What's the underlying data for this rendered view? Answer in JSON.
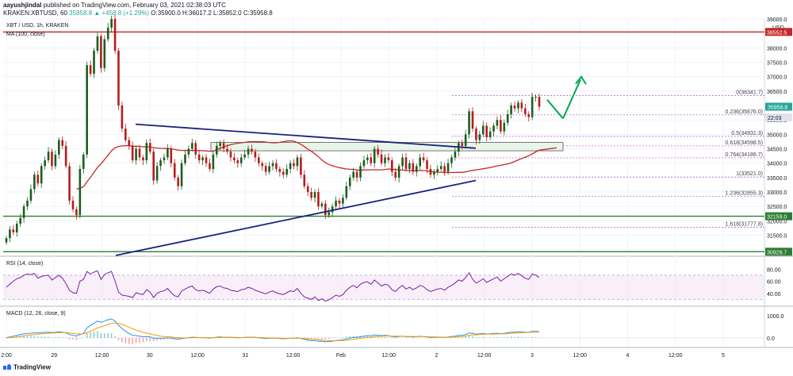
{
  "header": {
    "author": "aayushjindal",
    "published": "published on TradingView.com, February 03, 2021 02:38:03 UTC",
    "symbol": "KRAKEN:XBTUSD, 60",
    "price": "35958.8",
    "change": "▲ +458.8 (+1.29%)",
    "ohlc": "O:35900.0 H:36017.2 L:35852.0 C:35958.8"
  },
  "footer": {
    "brand": "TradingView"
  },
  "colors": {
    "up": "#26a69a",
    "down": "#ef5350",
    "candle_dark": "#b71c1c",
    "candle_green": "#1b5e20",
    "ma": "#c62828",
    "trend": "#1a237e",
    "rsi": "#7b1fa2",
    "macd": "#2196f3",
    "signal": "#ff9800",
    "fib": "#9c27b0",
    "resistance": "#c62828",
    "support": "#2e7d32",
    "arrow": "#00a651"
  },
  "chart_data": [
    {
      "type": "candlestick",
      "title": "XBT / USD, 1h, KRAKEN",
      "indicator": "MA (100, close)",
      "y_unit": "USD",
      "ylim": [
        30800,
        39000
      ],
      "y_ticks": [
        "39000.0",
        "38500.0",
        "38000.0",
        "37500.0",
        "37000.0",
        "36500.0",
        "36000.0",
        "35500.0",
        "35000.0",
        "34500.0",
        "34000.0",
        "33500.0",
        "33000.0",
        "32500.0",
        "32000.0",
        "31500.0",
        "31000.0"
      ],
      "x_ticks": [
        "2:00",
        "29",
        "12:00",
        "30",
        "12:00",
        "31",
        "12:00",
        "Feb",
        "12:00",
        "2",
        "12:00",
        "3",
        "12:00",
        "4",
        "12:00",
        "5"
      ],
      "close": [
        31400,
        31700,
        31600,
        31900,
        32100,
        32500,
        32700,
        33100,
        33600,
        33300,
        33900,
        34100,
        34400,
        33900,
        34300,
        34800,
        34600,
        33900,
        32700,
        32400,
        32200,
        33800,
        34300,
        37400,
        37100,
        37900,
        38400,
        37300,
        38300,
        38700,
        39000,
        37900,
        36000,
        35200,
        34800,
        34600,
        34100,
        34500,
        34200,
        34100,
        34700,
        34400,
        33400,
        33900,
        34100,
        34200,
        34500,
        34000,
        33500,
        33200,
        34000,
        34300,
        34500,
        34700,
        34300,
        34100,
        34200,
        34000,
        33800,
        34300,
        34600,
        34700,
        34500,
        34400,
        34200,
        34100,
        34000,
        34200,
        34300,
        34500,
        34400,
        34200,
        34000,
        33900,
        33700,
        33900,
        34000,
        33800,
        33700,
        33600,
        33800,
        34000,
        33900,
        34200,
        33600,
        33200,
        33000,
        32800,
        33000,
        32500,
        32600,
        32200,
        32300,
        32500,
        32700,
        32600,
        32800,
        33200,
        33500,
        33700,
        33500,
        33900,
        34100,
        34200,
        34000,
        34500,
        34300,
        34000,
        34200,
        34100,
        33700,
        33500,
        33900,
        34200,
        33800,
        34000,
        33700,
        33900,
        34200,
        34100,
        33800,
        33600,
        33700,
        33800,
        33900,
        33700,
        34000,
        34200,
        34400,
        34700,
        34600,
        35000,
        35800,
        35200,
        34800,
        35000,
        35300,
        34900,
        35100,
        35300,
        35500,
        35100,
        35400,
        35700,
        36000,
        35900,
        36100,
        35900,
        35700,
        35600,
        36300,
        36300,
        35959
      ],
      "horizontal_levels": [
        {
          "label": "38552.5",
          "value": 38552.5
        },
        {
          "label": "32159.0",
          "value": 32159
        },
        {
          "label": "30928.7",
          "value": 30928.7
        }
      ],
      "fibonacci": [
        {
          "label": "0(36341.7)",
          "value": 36341.7
        },
        {
          "label": "0.236(35676.0)",
          "value": 35676
        },
        {
          "label": "0.5(34931.3)",
          "value": 34931.3
        },
        {
          "label": "0.618(34598.5)",
          "value": 34598.5
        },
        {
          "label": "0.764(34186.7)",
          "value": 34186.7
        },
        {
          "label": "1(33521.0)",
          "value": 33521
        },
        {
          "label": "1.236(32855.3)",
          "value": 32855.3
        },
        {
          "label": "1.618(31777.8)",
          "value": 31777.8
        }
      ],
      "price_labels": [
        {
          "label": "35958.8",
          "value": 35958.8
        },
        {
          "label": "22:03",
          "value": 35700
        }
      ]
    },
    {
      "type": "line",
      "title": "RSI (14, close)",
      "ylim": [
        20,
        100
      ],
      "y_ticks": [
        "80.00",
        "60.00",
        "40.00"
      ],
      "band": [
        30,
        70
      ],
      "values": [
        50,
        55,
        60,
        64,
        66,
        70,
        72,
        71,
        73,
        65,
        68,
        69,
        70,
        62,
        66,
        70,
        65,
        56,
        45,
        41,
        40,
        60,
        63,
        76,
        72,
        75,
        77,
        63,
        71,
        74,
        76,
        60,
        42,
        37,
        36,
        35,
        33,
        41,
        39,
        38,
        46,
        42,
        33,
        40,
        43,
        44,
        48,
        41,
        36,
        34,
        44,
        47,
        50,
        52,
        46,
        44,
        45,
        43,
        40,
        47,
        51,
        52,
        49,
        48,
        45,
        44,
        43,
        46,
        47,
        50,
        48,
        45,
        43,
        41,
        39,
        42,
        44,
        41,
        39,
        38,
        41,
        44,
        43,
        48,
        40,
        34,
        32,
        30,
        34,
        28,
        31,
        27,
        29,
        33,
        37,
        35,
        38,
        45,
        50,
        53,
        49,
        55,
        58,
        59,
        55,
        62,
        57,
        52,
        55,
        53,
        46,
        43,
        49,
        53,
        47,
        50,
        46,
        49,
        53,
        51,
        46,
        43,
        45,
        47,
        48,
        45,
        50,
        53,
        57,
        62,
        60,
        66,
        74,
        63,
        57,
        60,
        64,
        58,
        61,
        64,
        67,
        60,
        64,
        68,
        72,
        70,
        73,
        69,
        65,
        63,
        72,
        70,
        66
      ]
    },
    {
      "type": "line",
      "title": "MACD (12, 26, close, 9)",
      "ylim": [
        -400,
        1400
      ],
      "y_ticks": [
        "1000.0",
        "0.0"
      ],
      "series": [
        {
          "name": "MACD",
          "values": [
            10,
            40,
            80,
            120,
            150,
            180,
            200,
            210,
            230,
            220,
            240,
            250,
            260,
            240,
            250,
            270,
            260,
            220,
            150,
            110,
            80,
            150,
            200,
            450,
            560,
            660,
            760,
            700,
            760,
            820,
            860,
            760,
            560,
            420,
            300,
            200,
            120,
            100,
            70,
            50,
            60,
            40,
            -10,
            -20,
            -20,
            -10,
            0,
            -10,
            -40,
            -60,
            -30,
            -10,
            10,
            30,
            20,
            10,
            10,
            0,
            -10,
            10,
            30,
            40,
            30,
            30,
            20,
            10,
            0,
            10,
            20,
            30,
            30,
            20,
            0,
            -10,
            -30,
            -20,
            -10,
            -20,
            -30,
            -40,
            -30,
            -20,
            -20,
            0,
            -30,
            -70,
            -100,
            -130,
            -120,
            -160,
            -150,
            -180,
            -170,
            -150,
            -120,
            -110,
            -90,
            -50,
            -10,
            20,
            20,
            50,
            80,
            100,
            90,
            130,
            120,
            100,
            110,
            100,
            60,
            40,
            60,
            80,
            50,
            60,
            40,
            50,
            70,
            60,
            40,
            20,
            20,
            30,
            30,
            20,
            40,
            60,
            80,
            110,
            110,
            150,
            220,
            200,
            170,
            180,
            200,
            170,
            180,
            200,
            210,
            190,
            200,
            230,
            260,
            260,
            280,
            270,
            260,
            250,
            290,
            290,
            280
          ]
        },
        {
          "name": "Signal",
          "values": [
            0,
            10,
            25,
            45,
            65,
            90,
            110,
            130,
            150,
            165,
            180,
            195,
            210,
            215,
            225,
            235,
            240,
            235,
            220,
            200,
            180,
            175,
            180,
            235,
            300,
            370,
            450,
            500,
            550,
            610,
            660,
            680,
            660,
            610,
            550,
            480,
            410,
            350,
            300,
            250,
            215,
            180,
            140,
            110,
            80,
            60,
            50,
            40,
            25,
            10,
            0,
            -5,
            0,
            5,
            10,
            10,
            10,
            10,
            5,
            5,
            10,
            15,
            20,
            20,
            20,
            20,
            15,
            15,
            15,
            20,
            20,
            20,
            15,
            10,
            0,
            -5,
            -5,
            -10,
            -15,
            -20,
            -25,
            -25,
            -25,
            -20,
            -20,
            -30,
            -45,
            -60,
            -75,
            -90,
            -100,
            -115,
            -125,
            -130,
            -130,
            -125,
            -120,
            -105,
            -85,
            -65,
            -45,
            -25,
            -5,
            15,
            30,
            50,
            65,
            70,
            80,
            85,
            80,
            70,
            70,
            70,
            65,
            65,
            60,
            60,
            60,
            60,
            55,
            45,
            40,
            35,
            35,
            30,
            30,
            35,
            45,
            55,
            65,
            85,
            110,
            130,
            140,
            150,
            160,
            160,
            165,
            170,
            175,
            180,
            185,
            195,
            205,
            215,
            225,
            235,
            240,
            245,
            255,
            260,
            265
          ]
        }
      ]
    }
  ]
}
